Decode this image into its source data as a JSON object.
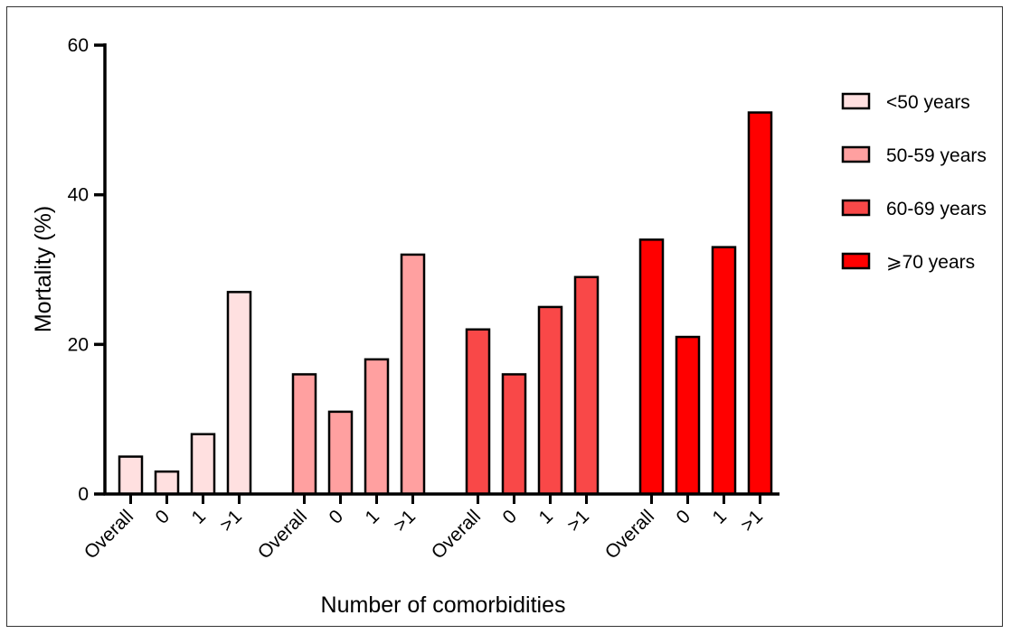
{
  "chart_data": {
    "type": "bar",
    "ylabel": "Mortality (%)",
    "xlabel": "Number of comorbidities",
    "ylim": [
      0,
      60
    ],
    "yticks": [
      0,
      20,
      40,
      60
    ],
    "legend_position": "right",
    "groups": [
      {
        "name": "<50 years",
        "color": "#FFE0E0"
      },
      {
        "name": "50-59 years",
        "color": "#FFA0A0"
      },
      {
        "name": "60-69 years",
        "color": "#F94848"
      },
      {
        "name": "⩾70 years",
        "color": "#FF0000"
      }
    ],
    "categories": [
      "Overall",
      "0",
      "1",
      ">1"
    ],
    "series": [
      {
        "name": "<50 years",
        "values": [
          5,
          3,
          8,
          27
        ]
      },
      {
        "name": "50-59 years",
        "values": [
          16,
          11,
          18,
          32
        ]
      },
      {
        "name": "60-69 years",
        "values": [
          22,
          16,
          25,
          29
        ]
      },
      {
        "name": "⩾70 years",
        "values": [
          34,
          21,
          33,
          51
        ]
      }
    ]
  }
}
